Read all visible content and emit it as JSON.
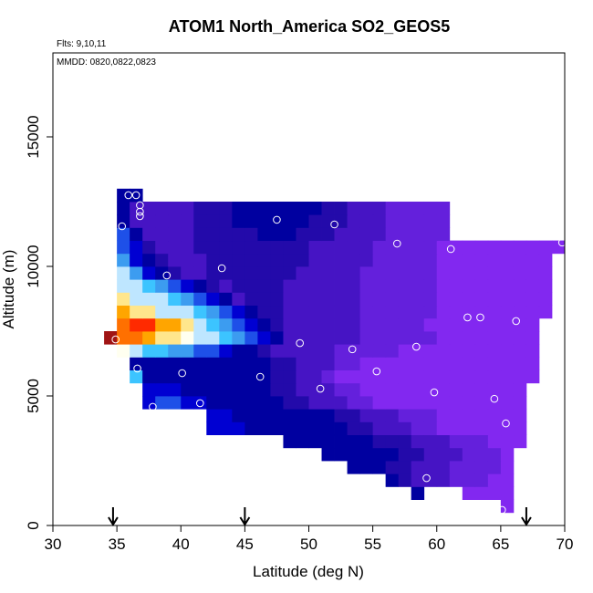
{
  "chart_data": {
    "type": "heatmap",
    "title": "ATOM1 North_America SO2_GEOS5",
    "annotations": [
      "Flts: 9,10,11",
      "MMDD: 0820,0822,0823"
    ],
    "x_label": "Latitude (deg N)",
    "y_label": "Altitude (m)",
    "xlim": [
      30,
      70
    ],
    "ylim": [
      0,
      18240
    ],
    "xticks": [
      30,
      35,
      40,
      45,
      50,
      55,
      60,
      65,
      70
    ],
    "yticks": [
      0,
      5000,
      10000,
      15000
    ],
    "lats": [
      34.5,
      35.5,
      36.5,
      37.5,
      38.5,
      39.5,
      40.5,
      41.5,
      42.5,
      43.5,
      44.5,
      45.5,
      46.5,
      47.5,
      48.5,
      49.5,
      50.5,
      51.5,
      52.5,
      53.5,
      54.5,
      55.5,
      56.5,
      57.5,
      58.5,
      59.5,
      60.5,
      61.5,
      62.5,
      63.5,
      64.5,
      65.5,
      66.5,
      67.5,
      68.5,
      69.5
    ],
    "alts": [
      250,
      750,
      1250,
      1750,
      2250,
      2750,
      3250,
      3750,
      4250,
      4750,
      5250,
      5750,
      6250,
      6750,
      7250,
      7750,
      8250,
      8750,
      9250,
      9750,
      10250,
      10750,
      11250,
      11750,
      12250,
      12750
    ],
    "palette": {
      "P": "#8228f0",
      "p": "#6420dc",
      "v": "#4614c4",
      "b": "#230aaa",
      "n": "#0000a0",
      "B": "#0000d2",
      "m": "#1e50e8",
      "c": "#3c9cf0",
      "k": "#3cc4ff",
      "l": "#bee6ff",
      "y": "#ffe68c",
      "w": "#fffff0",
      "o": "#ffa500",
      "O": "#ff7000",
      "r": "#ff2a00",
      "R": "#a01414"
    },
    "rows": [
      "....................................",
      "...............................P....",
      "........................n...PPPP....",
      "......................nbvvvpppPP....",
      "...................nnnbbvvvppppP....",
      ".................nnnnnnbbvvvpppP....",
      "..............nnnnnnnbbbvvvpppPPP...",
      "........BBBnnnnnnnnbbvvvppPPPPPPP...",
      "........BBnnnnnnnnbbvvvpppPPPPPPP...",
      "...BmmBBnnnnnnbbvvvppPPPPPPPPPPPP...",
      "...BBBnnnnnnnbbvvvppPPPPPPPPPPPPP...",
      "..knnnnnnnnnnbbvvpPPPPPPPPPPPPPPPP..",
      "..nnnnnnnnnnnbbvvvppPPPPPPPPPPPPPP..",
      ".wlkkccmmBnnbvvvvvpppppPPPPPPPPPPP..",
      "ROOoyywllkcmBnvvvvvvppppppPPPPPPPP..",
      ".OrrooylkcmBnbvvvvvvpppppPPPPPPPPP..",
      ".oyylllkcmBnbbvvvvvvppppppPPPPPPPPP.",
      ".ylllkcmBnvbbbvvvvvvppppppPPPPPPPPP.",
      ".llkcmBnbvbbbbvvvvvvppppppPPPPPPPPP.",
      ".lcBnbvvbbbbbbbvvvvvppppppPPPPPPPPP.",
      ".cBnbvvvbbbbbbbbvvvvvpppppPPPPPPPPP.",
      ".mBbvvvbbbbbbbbbvvvvvpppppPPPPPPPPPP",
      ".mnvvvvbbbbbnnnbbbvvvvppppp.........",
      ".nvvvvvbbbnnnnnnbbbvvvppppp.........",
      ".nvvvvvbbbnnnnnnnbbvvvppppp.........",
      ".nn................................."
    ],
    "flight_points": {
      "color": "#ffffff",
      "x": [
        35.9,
        36.5,
        36.8,
        36.8,
        36.8,
        35.4,
        47.5,
        52.0,
        56.9,
        61.1,
        69.8,
        43.2,
        38.9,
        62.4,
        63.4,
        66.2,
        34.9,
        49.3,
        53.4,
        58.4,
        36.6,
        55.3,
        40.1,
        46.2,
        50.9,
        59.8,
        37.8,
        41.5,
        64.5,
        65.4,
        59.2,
        65.1
      ],
      "y": [
        12750,
        12750,
        12360,
        12110,
        11940,
        11550,
        11800,
        11620,
        10880,
        10670,
        10920,
        9930,
        9650,
        8030,
        8030,
        7890,
        7180,
        7040,
        6800,
        6900,
        6060,
        5950,
        5880,
        5740,
        5280,
        5140,
        4580,
        4720,
        4890,
        3940,
        1830,
        600
      ]
    },
    "arrows": [
      34.7,
      45,
      67
    ]
  }
}
